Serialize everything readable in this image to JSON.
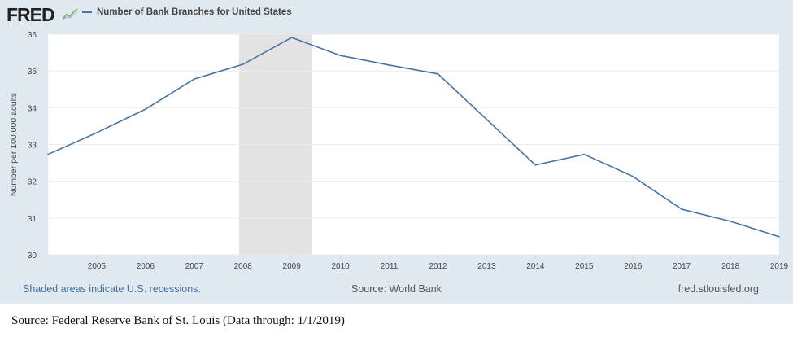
{
  "header": {
    "logo": "FRED",
    "legend_label": "Number of Bank Branches for United States"
  },
  "footer": {
    "recession_note": "Shaded areas indicate U.S. recessions.",
    "source": "Source: World Bank",
    "site": "fred.stlouisfed.org"
  },
  "caption": "Source: Federal Reserve Bank of St. Louis (Data through: 1/1/2019)",
  "colors": {
    "line": "#4572a7",
    "recession": "#e3e3e3",
    "background": "#e1e9f0"
  },
  "chart_data": {
    "type": "line",
    "title": "Number of Bank Branches for United States",
    "xlabel": "",
    "ylabel": "Number per 100,000 adults",
    "xlim": [
      2004,
      2019
    ],
    "ylim": [
      30,
      36
    ],
    "yticks": [
      "30",
      "31",
      "32",
      "33",
      "34",
      "35",
      "36"
    ],
    "xticks": [
      "2005",
      "2006",
      "2007",
      "2008",
      "2009",
      "2010",
      "2011",
      "2012",
      "2013",
      "2014",
      "2015",
      "2016",
      "2017",
      "2018",
      "2019"
    ],
    "grid": true,
    "recessions": [
      [
        2007.92,
        2009.42
      ]
    ],
    "series": [
      {
        "name": "Number of Bank Branches for United States",
        "x": [
          2004,
          2005,
          2006,
          2007,
          2008,
          2009,
          2010,
          2011,
          2012,
          2013,
          2014,
          2015,
          2016,
          2017,
          2018,
          2019
        ],
        "values": [
          32.73,
          33.32,
          33.96,
          34.78,
          35.18,
          35.91,
          35.42,
          35.16,
          34.92,
          33.68,
          32.44,
          32.73,
          32.13,
          31.24,
          30.91,
          30.49
        ]
      }
    ]
  }
}
